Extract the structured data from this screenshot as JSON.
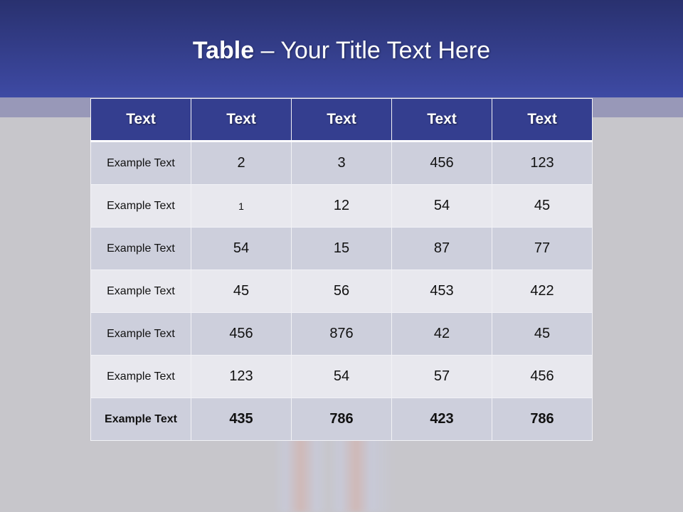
{
  "slide": {
    "title_bold": "Table",
    "title_rest": " – Your Title Text Here",
    "colors": {
      "header_bg": "#343e8f",
      "row_dark": "#cdcfdc",
      "row_light": "#e8e8ee",
      "top_band": "#3e4aa4"
    }
  },
  "table": {
    "headers": [
      "Text",
      "Text",
      "Text",
      "Text",
      "Text"
    ],
    "rows": [
      [
        "Example Text",
        "2",
        "3",
        "456",
        "123"
      ],
      [
        "Example Text",
        "1",
        "12",
        "54",
        "45"
      ],
      [
        "Example Text",
        "54",
        "15",
        "87",
        "77"
      ],
      [
        "Example Text",
        "45",
        "56",
        "453",
        "422"
      ],
      [
        "Example Text",
        "456",
        "876",
        "42",
        "45"
      ],
      [
        "Example Text",
        "123",
        "54",
        "57",
        "456"
      ],
      [
        "Example Text",
        "435",
        "786",
        "423",
        "786"
      ]
    ]
  }
}
